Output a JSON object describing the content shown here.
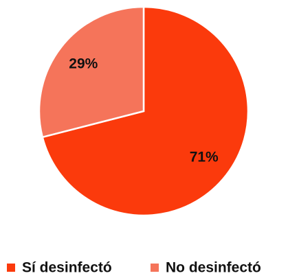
{
  "chart_data": {
    "type": "pie",
    "categories": [
      "Sí desinfectó",
      "No desinfectó"
    ],
    "values": [
      71,
      29
    ],
    "value_labels": [
      "71%",
      "29%"
    ],
    "colors": [
      "#fb3a0c",
      "#f5745a"
    ],
    "legend": "bottom"
  }
}
